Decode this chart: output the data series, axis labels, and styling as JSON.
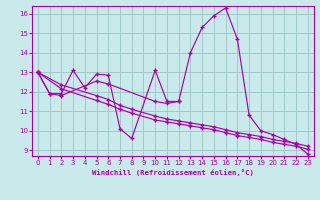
{
  "background_color": "#c8eaea",
  "grid_color": "#a0c8c8",
  "line_color": "#aa00aa",
  "xlabel": "Windchill (Refroidissement éolien,°C)",
  "xlim": [
    -0.5,
    23.5
  ],
  "ylim": [
    8.7,
    16.4
  ],
  "yticks": [
    9,
    10,
    11,
    12,
    13,
    14,
    15,
    16
  ],
  "xticks": [
    0,
    1,
    2,
    3,
    4,
    5,
    6,
    7,
    8,
    9,
    10,
    11,
    12,
    13,
    14,
    15,
    16,
    17,
    18,
    19,
    20,
    21,
    22,
    23
  ],
  "line1_x": [
    0,
    1,
    2,
    3,
    4,
    5,
    6,
    7,
    8,
    10,
    11,
    12,
    13,
    14,
    15,
    16,
    17,
    18,
    19,
    20,
    21,
    22,
    23
  ],
  "line1_y": [
    13.0,
    11.9,
    11.9,
    13.1,
    12.2,
    12.9,
    12.85,
    10.1,
    9.6,
    13.1,
    11.5,
    11.5,
    14.0,
    15.3,
    15.9,
    16.3,
    14.7,
    10.8,
    10.0,
    9.8,
    9.55,
    9.3,
    8.8
  ],
  "line2_x": [
    0,
    1,
    2,
    5,
    6,
    10,
    11,
    12
  ],
  "line2_y": [
    13.0,
    11.9,
    11.8,
    12.55,
    12.4,
    11.5,
    11.4,
    11.5
  ],
  "line3_x": [
    0,
    2,
    5,
    6,
    7,
    8,
    10,
    11,
    12,
    13,
    14,
    15,
    16,
    17,
    18,
    19,
    20,
    21,
    22,
    23
  ],
  "line3_y": [
    13.0,
    12.35,
    11.8,
    11.6,
    11.3,
    11.1,
    10.75,
    10.6,
    10.5,
    10.4,
    10.3,
    10.2,
    10.05,
    9.9,
    9.8,
    9.7,
    9.55,
    9.45,
    9.35,
    9.2
  ],
  "line4_x": [
    0,
    2,
    5,
    6,
    7,
    8,
    10,
    11,
    12,
    13,
    14,
    15,
    16,
    17,
    18,
    19,
    20,
    21,
    22,
    23
  ],
  "line4_y": [
    13.0,
    12.15,
    11.55,
    11.35,
    11.1,
    10.9,
    10.55,
    10.45,
    10.35,
    10.25,
    10.15,
    10.05,
    9.9,
    9.75,
    9.65,
    9.55,
    9.4,
    9.3,
    9.2,
    9.05
  ]
}
